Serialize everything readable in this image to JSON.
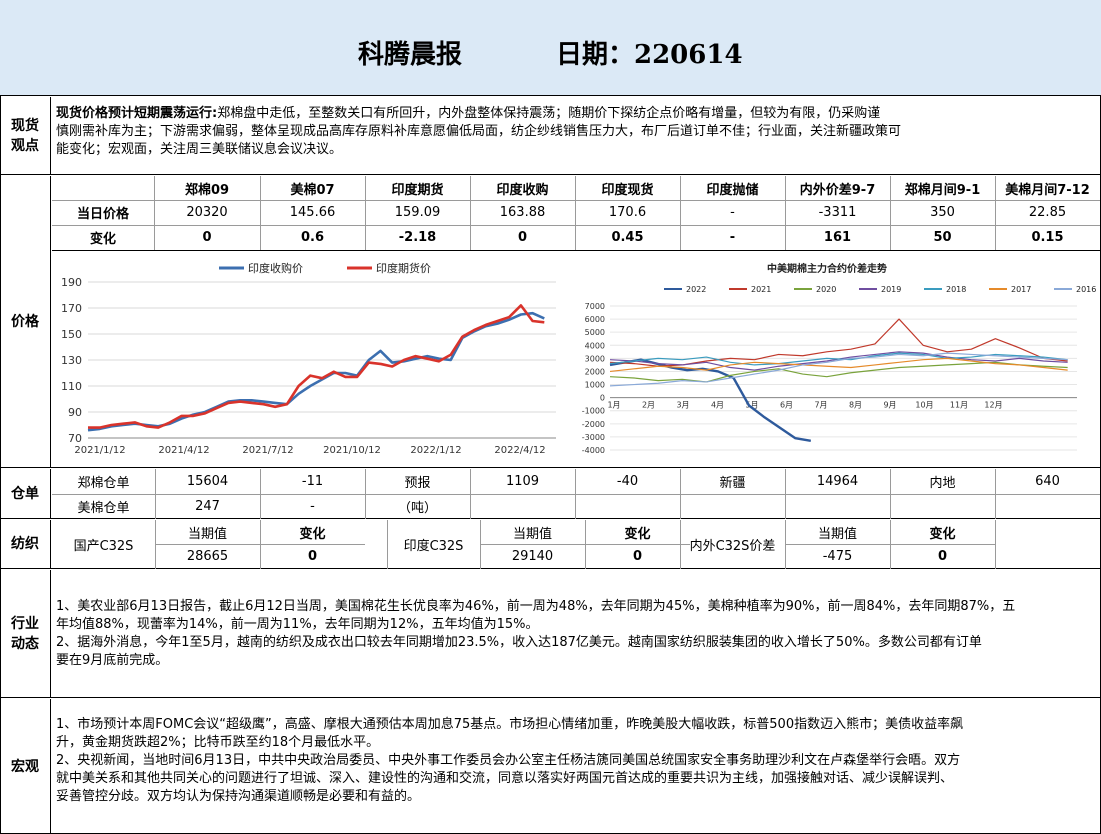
{
  "header": {
    "title": "科腾晨报",
    "date": "日期：220614"
  },
  "spot": {
    "label_1": "现货",
    "label_2": "观点",
    "lead": "现货价格预计短期震荡运行:",
    "line1": "郑棉盘中走低，至整数关口有所回升，内外盘整体保持震荡；随期价下探纺企点价略有增量，但较为有限，仍采购谨",
    "line2": "慎刚需补库为主；下游需求偏弱，整体呈现成品高库存原料补库意愿偏低局面，纺企纱线销售压力大，布厂后道订单不佳；行业面，关注新疆政策可",
    "line3": "能变化；宏观面，关注周三美联储议息会议决议。"
  },
  "price": {
    "label": "价格",
    "headers": [
      "郑棉09",
      "美棉07",
      "印度期货",
      "印度收购",
      "印度现货",
      "印度抛储",
      "内外价差9-7",
      "郑棉月间9-1",
      "美棉月间7-12"
    ],
    "row1_label": "当日价格",
    "row1": [
      "20320",
      "145.66",
      "159.09",
      "163.88",
      "170.6",
      "-",
      "-3311",
      "350",
      "22.85"
    ],
    "row2_label": "变化",
    "row2": [
      "0",
      "0.6",
      "-2.18",
      "0",
      "0.45",
      "-",
      "161",
      "50",
      "0.15"
    ]
  },
  "chart_data": [
    {
      "type": "line",
      "legend": [
        "印度收购价",
        "印度期货价"
      ],
      "xticks": [
        "2021/1/12",
        "2021/4/12",
        "2021/7/12",
        "2021/10/12",
        "2022/1/12",
        "2022/4/12"
      ],
      "yticks": [
        70,
        90,
        110,
        130,
        150,
        170,
        190
      ],
      "ylim": [
        70,
        190
      ],
      "series": [
        {
          "name": "印度收购价",
          "color": "#3c6fb0",
          "x": [
            0,
            3,
            6,
            9,
            12,
            15,
            18,
            21,
            24,
            27,
            30,
            33,
            36,
            39,
            42,
            45,
            48,
            51,
            54,
            57,
            60,
            63,
            66,
            69,
            72,
            75,
            78,
            81,
            84,
            87,
            90,
            93,
            96,
            99,
            102,
            105,
            108,
            111,
            114,
            117
          ],
          "values": [
            76,
            77,
            79,
            80,
            81,
            80,
            79,
            81,
            85,
            88,
            90,
            94,
            98,
            99,
            99,
            98,
            97,
            96,
            104,
            110,
            115,
            120,
            120,
            118,
            130,
            137,
            128,
            129,
            131,
            133,
            131,
            130,
            147,
            152,
            156,
            158,
            161,
            165,
            166,
            162
          ]
        },
        {
          "name": "印度期货价",
          "color": "#d9332b",
          "x": [
            0,
            3,
            6,
            9,
            12,
            15,
            18,
            21,
            24,
            27,
            30,
            33,
            36,
            39,
            42,
            45,
            48,
            51,
            54,
            57,
            60,
            63,
            66,
            69,
            72,
            75,
            78,
            81,
            84,
            87,
            90,
            93,
            96,
            99,
            102,
            105,
            108,
            111,
            114,
            117
          ],
          "values": [
            78,
            78,
            80,
            81,
            82,
            79,
            78,
            82,
            87,
            87,
            89,
            93,
            97,
            98,
            97,
            96,
            94,
            96,
            110,
            118,
            116,
            121,
            117,
            117,
            128,
            127,
            125,
            130,
            133,
            131,
            129,
            134,
            148,
            153,
            157,
            160,
            163,
            172,
            160,
            159
          ]
        }
      ]
    },
    {
      "type": "line",
      "title": "中美期棉主力合约价差走势",
      "yticks": [
        -4000,
        -3000,
        -2000,
        -1000,
        0,
        1000,
        2000,
        3000,
        4000,
        5000,
        6000,
        7000
      ],
      "ylim": [
        -4000,
        7000
      ],
      "xticks": [
        "1月",
        "2月",
        "3月",
        "4月",
        "5月",
        "6月",
        "7月",
        "8月",
        "9月",
        "10月",
        "11月",
        "12月"
      ],
      "series": [
        {
          "name": "2022",
          "color": "#2e5a9c",
          "values": [
            2500,
            2700,
            2900,
            2600,
            2300,
            2100,
            2200,
            2000,
            1500,
            -600,
            -1500,
            -2300,
            -3100,
            -3300
          ]
        },
        {
          "name": "2021",
          "color": "#c0392b",
          "values": [
            2700,
            2600,
            2400,
            2500,
            2800,
            3000,
            2900,
            3300,
            3200,
            3500,
            3700,
            4100,
            6000,
            4000,
            3500,
            3700,
            4500,
            3800,
            3000,
            2800
          ]
        },
        {
          "name": "2020",
          "color": "#7aa33c",
          "values": [
            1600,
            1500,
            1300,
            1400,
            1200,
            1700,
            2000,
            2200,
            1800,
            1600,
            1900,
            2100,
            2300,
            2400,
            2500,
            2600,
            2700,
            2500,
            2400,
            2300
          ]
        },
        {
          "name": "2019",
          "color": "#6f4ea0",
          "values": [
            2900,
            2800,
            2600,
            2500,
            2700,
            2300,
            2100,
            2400,
            2600,
            2800,
            3100,
            3300,
            3500,
            3400,
            3100,
            2900,
            2800,
            3000,
            2800,
            2700
          ]
        },
        {
          "name": "2018",
          "color": "#3a9cbf",
          "values": [
            2600,
            2800,
            3000,
            2900,
            3100,
            2700,
            2500,
            2600,
            2800,
            3000,
            2900,
            3200,
            3400,
            3300,
            3000,
            3100,
            3300,
            3200,
            3100,
            2900
          ]
        },
        {
          "name": "2017",
          "color": "#e58a2a",
          "values": [
            2000,
            2200,
            2400,
            2300,
            2100,
            2500,
            2700,
            2600,
            2500,
            2400,
            2300,
            2500,
            2700,
            2900,
            3000,
            2800,
            2600,
            2500,
            2300,
            2100
          ]
        },
        {
          "name": "2016",
          "color": "#8aa9d8",
          "values": [
            900,
            1000,
            1100,
            1300,
            1200,
            1500,
            1800,
            2100,
            2500,
            2700,
            3000,
            3100,
            3300,
            3200,
            3400,
            3300,
            3200,
            3100,
            3000,
            2900
          ]
        }
      ]
    }
  ],
  "warehouse": {
    "label": "仓单",
    "r1": [
      "郑棉仓单",
      "15604",
      "-11",
      "预报",
      "1109",
      "-40",
      "新疆",
      "14964",
      "内地",
      "640"
    ],
    "r2": [
      "美棉仓单",
      "247",
      "-",
      "（吨）"
    ]
  },
  "textile": {
    "label": "纺织",
    "h_value": "当期值",
    "h_change": "变化",
    "items": [
      {
        "name": "国产C32S",
        "value": "28665",
        "change": "0"
      },
      {
        "name": "印度C32S",
        "value": "29140",
        "change": "0"
      },
      {
        "name": "内外C32S价差",
        "value": "-475",
        "change": "0"
      }
    ]
  },
  "industry": {
    "label_1": "行业",
    "label_2": "动态",
    "p1a": "1、美农业部6月13日报告，截止6月12日当周，美国棉花生长优良率为46%，前一周为48%，去年同期为45%，美棉种植率为90%，前一周84%，去年同期87%，五",
    "p1b": "年均值88%，现蕾率为14%，前一周为11%，去年同期为12%，五年均值为15%。",
    "p2a": "2、据海外消息，今年1至5月，越南的纺织及成衣出口较去年同期增加23.5%，收入达187亿美元。越南国家纺织服装集团的收入增长了50%。多数公司都有订单",
    "p2b": "要在9月底前完成。"
  },
  "macro": {
    "label": "宏观",
    "p1a": "1、市场预计本周FOMC会议“超级鹰”，高盛、摩根大通预估本周加息75基点。市场担心情绪加重，昨晚美股大幅收跌，标普500指数迈入熊市；美债收益率飙",
    "p1b": "升，黄金期货跌超2%；比特币跌至约18个月最低水平。",
    "p2a": "2、央视新闻，当地时间6月13日，中共中央政治局委员、中央外事工作委员会办公室主任杨洁篪同美国总统国家安全事务助理沙利文在卢森堡举行会晤。双方",
    "p2b": "就中美关系和其他共同关心的问题进行了坦诚、深入、建设性的沟通和交流，同意以落实好两国元首达成的重要共识为主线，加强接触对话、减少误解误判、",
    "p2c": "妥善管控分歧。双方均认为保持沟通渠道顺畅是必要和有益的。"
  }
}
